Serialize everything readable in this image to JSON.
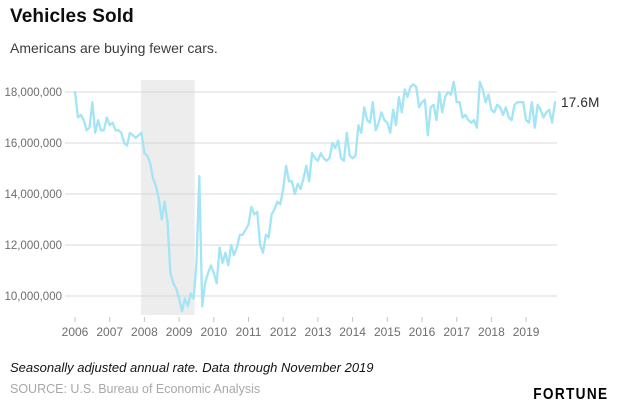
{
  "header": {
    "title": "Vehicles Sold",
    "subtitle": "Americans are buying fewer cars."
  },
  "footer": {
    "note": "Seasonally adjusted annual rate. Data through November 2019",
    "source": "SOURCE: U.S. Bureau of Economic Analysis",
    "brand": "FORTUNE"
  },
  "chart_data": {
    "type": "line",
    "title": "Vehicles Sold",
    "subtitle": "Americans are buying fewer cars.",
    "unit": "vehicles sold per year, seasonally adjusted annual rate",
    "frequency": "monthly",
    "x_start": "2006-01",
    "x_end": "2019-11",
    "x_tick_labels": [
      "2006",
      "2007",
      "2008",
      "2009",
      "2010",
      "2011",
      "2012",
      "2013",
      "2014",
      "2015",
      "2016",
      "2017",
      "2018",
      "2019"
    ],
    "y_tick_labels": [
      "18,000,000",
      "16,000,000",
      "14,000,000",
      "12,000,000",
      "10,000,000"
    ],
    "y_ticks_millions": [
      18,
      16,
      14,
      12,
      10
    ],
    "ylim_millions": [
      9.2,
      18.55
    ],
    "grid": "horizontal",
    "legend": "none",
    "recession_band_years": [
      2007.9,
      2009.45
    ],
    "end_label": "17.6M",
    "end_value_millions": 17.6,
    "colors": {
      "line": "#a3e4f5",
      "grid": "#d8d8d8",
      "band": "#ededed",
      "tick": "#c6c6c6",
      "axis_text": "#6e6e6e",
      "end_label": "#2b2b2b"
    },
    "series": [
      {
        "name": "Vehicles sold (millions, SAAR)",
        "values_millions": [
          18.0,
          17.0,
          17.1,
          16.9,
          16.5,
          16.6,
          17.6,
          16.4,
          16.9,
          16.5,
          16.5,
          17.0,
          16.7,
          16.8,
          16.5,
          16.5,
          16.4,
          16.0,
          15.9,
          16.4,
          16.3,
          16.2,
          16.3,
          16.4,
          15.6,
          15.5,
          15.2,
          14.6,
          14.3,
          13.8,
          13.0,
          13.7,
          12.9,
          10.9,
          10.5,
          10.3,
          9.9,
          9.4,
          9.9,
          9.6,
          10.1,
          9.9,
          11.3,
          14.7,
          9.6,
          10.5,
          10.9,
          11.2,
          10.9,
          10.5,
          11.9,
          11.3,
          11.7,
          11.2,
          12.0,
          11.6,
          11.9,
          12.4,
          12.4,
          12.6,
          12.8,
          13.5,
          13.2,
          13.3,
          12.0,
          11.7,
          12.4,
          12.3,
          13.2,
          13.4,
          13.7,
          13.6,
          14.2,
          15.1,
          14.5,
          14.5,
          14.0,
          14.4,
          14.2,
          14.6,
          15.1,
          14.5,
          15.6,
          15.4,
          15.3,
          15.6,
          15.4,
          15.3,
          15.4,
          16.0,
          15.8,
          16.1,
          15.4,
          15.3,
          16.4,
          15.5,
          15.4,
          15.5,
          16.7,
          16.4,
          17.4,
          16.9,
          16.8,
          17.6,
          16.5,
          16.8,
          17.2,
          16.9,
          16.8,
          16.4,
          17.3,
          16.7,
          17.8,
          17.2,
          18.1,
          17.8,
          18.2,
          18.3,
          18.2,
          17.4,
          17.6,
          17.7,
          16.3,
          17.4,
          17.5,
          16.9,
          18.0,
          17.2,
          17.8,
          18.0,
          17.9,
          18.4,
          17.6,
          17.6,
          17.0,
          17.1,
          16.9,
          16.8,
          16.9,
          16.6,
          18.4,
          18.1,
          17.6,
          17.9,
          17.3,
          17.2,
          17.5,
          17.4,
          17.1,
          17.4,
          17.0,
          16.9,
          17.5,
          17.6,
          17.6,
          17.6,
          16.9,
          16.8,
          17.6,
          16.6,
          17.5,
          17.3,
          17.0,
          17.2,
          17.3,
          16.8,
          17.6
        ]
      }
    ]
  }
}
